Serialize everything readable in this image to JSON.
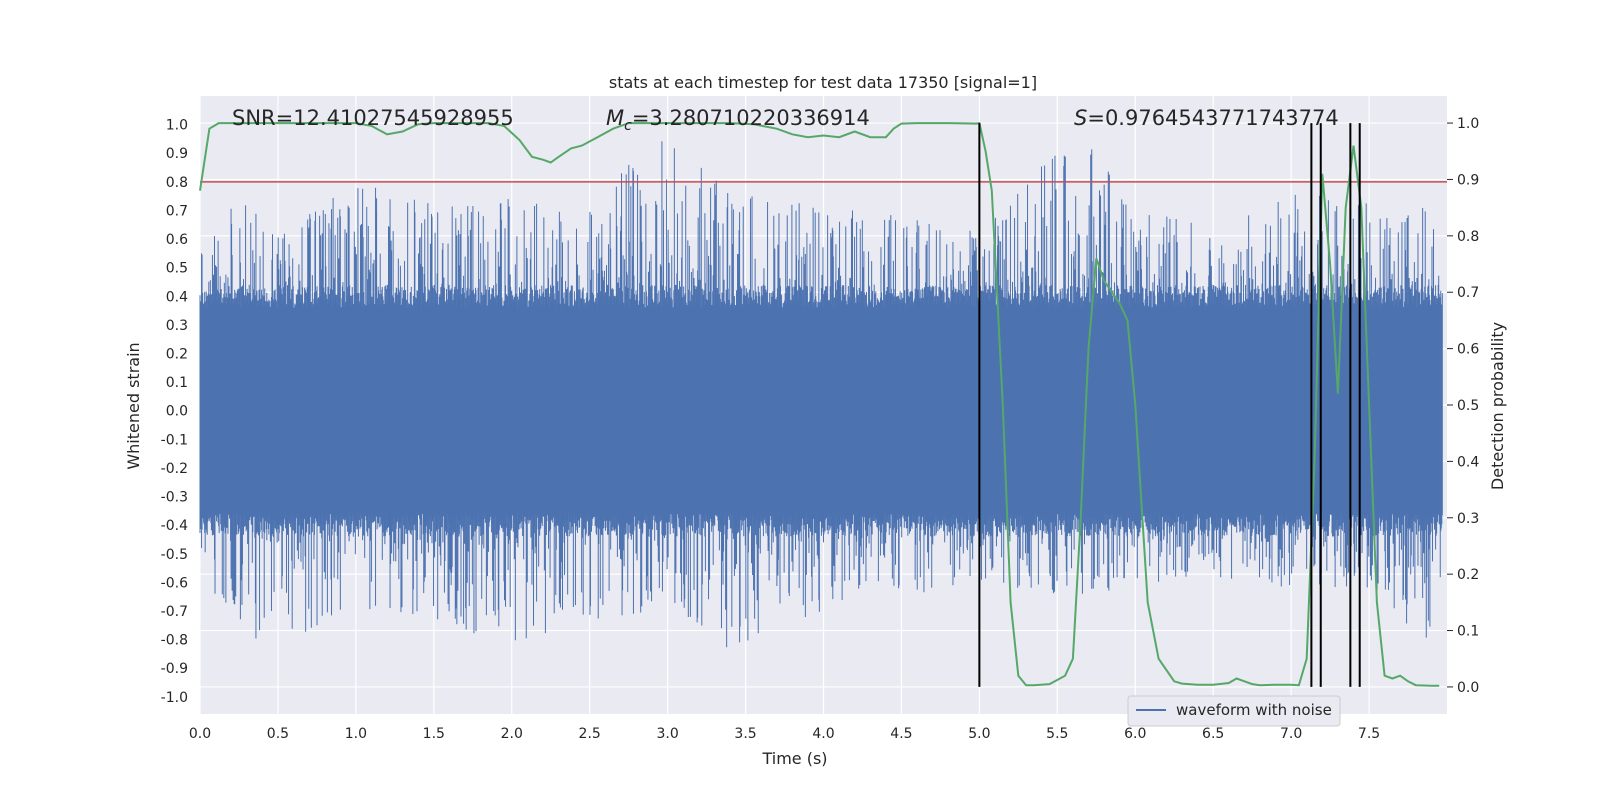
{
  "chart_data": {
    "type": "line",
    "title": "stats at each timestep for test data 17350 [signal=1]",
    "xlabel": "Time (s)",
    "ylabel": "Whitened strain",
    "y2label": "Detection probability",
    "xlim": [
      0,
      8.0
    ],
    "ylim": [
      -1.06,
      1.1
    ],
    "y2lim": [
      -0.048,
      1.048
    ],
    "x_ticks": [
      0,
      0.5,
      1,
      1.5,
      2,
      2.5,
      3,
      3.5,
      4,
      4.5,
      5,
      5.5,
      6,
      6.5,
      7,
      7.5
    ],
    "x_tick_labels": [
      "0.0",
      "0.5",
      "1.0",
      "1.5",
      "2.0",
      "2.5",
      "3.0",
      "3.5",
      "4.0",
      "4.5",
      "5.0",
      "5.5",
      "6.0",
      "6.5",
      "7.0",
      "7.5"
    ],
    "y_ticks": [
      1.0,
      0.9,
      0.8,
      0.7,
      0.6,
      0.5,
      0.4,
      0.3,
      0.2,
      0.1,
      0.0,
      -0.1,
      -0.2,
      -0.3,
      -0.4,
      -0.5,
      -0.6,
      -0.7,
      -0.8,
      -0.9,
      -1.0
    ],
    "y_tick_labels": [
      "1.0",
      "0.9",
      "0.8",
      "0.7",
      "0.6",
      "0.5",
      "0.4",
      "0.3",
      "0.2",
      "0.1",
      "0.0",
      "-0.1",
      "-0.2",
      "-0.3",
      "-0.4",
      "-0.5",
      "-0.6",
      "-0.7",
      "-0.8",
      "-0.9",
      "-1.0"
    ],
    "y2_ticks": [
      1.0,
      0.9,
      0.8,
      0.7,
      0.6,
      0.5,
      0.4,
      0.3,
      0.2,
      0.1,
      0.0
    ],
    "y2_tick_labels": [
      "1.0",
      "0.9",
      "0.8",
      "0.7",
      "0.6",
      "0.5",
      "0.4",
      "0.3",
      "0.2",
      "0.1",
      "0.0"
    ],
    "grid": true,
    "legend": {
      "entries": [
        "waveform with noise"
      ],
      "placement": "lower-right"
    },
    "annotations": {
      "snr": "SNR=12.41027545928955",
      "mc_symbol": "M",
      "mc_sub": "c",
      "mc_value": "=3.280710220336914",
      "s_symbol": "S",
      "s_value": "=0.9764543771743774"
    },
    "series": [
      {
        "name": "waveform with noise",
        "axis": "left",
        "color": "#4c72b0",
        "envelope": [
          [
            0.0,
            0.55,
            -0.55
          ],
          [
            0.25,
            0.75,
            -0.8
          ],
          [
            0.5,
            0.62,
            -0.82
          ],
          [
            1.0,
            0.8,
            -0.7
          ],
          [
            1.5,
            0.72,
            -0.75
          ],
          [
            2.0,
            0.75,
            -0.85
          ],
          [
            2.5,
            0.72,
            -0.73
          ],
          [
            3.0,
            1.0,
            -0.7
          ],
          [
            3.4,
            0.78,
            -0.84
          ],
          [
            4.0,
            0.72,
            -0.7
          ],
          [
            4.5,
            0.7,
            -0.66
          ],
          [
            5.0,
            0.62,
            -0.6
          ],
          [
            5.6,
            1.0,
            -0.65
          ],
          [
            6.0,
            0.72,
            -0.62
          ],
          [
            6.5,
            0.65,
            -0.6
          ],
          [
            7.0,
            0.78,
            -0.62
          ],
          [
            7.5,
            0.75,
            -0.65
          ],
          [
            7.95,
            0.7,
            -0.83
          ]
        ],
        "core_amplitude": 0.36
      },
      {
        "name": "detection probability",
        "axis": "right",
        "color": "#55a868",
        "x": [
          0.0,
          0.06,
          0.12,
          0.3,
          0.5,
          0.8,
          1.0,
          1.1,
          1.2,
          1.3,
          1.4,
          1.5,
          1.7,
          1.85,
          1.95,
          2.05,
          2.13,
          2.2,
          2.25,
          2.3,
          2.38,
          2.45,
          2.55,
          2.65,
          2.75,
          2.85,
          3.0,
          3.2,
          3.4,
          3.55,
          3.7,
          3.8,
          3.9,
          4.0,
          4.1,
          4.2,
          4.3,
          4.4,
          4.45,
          4.5,
          4.6,
          4.8,
          4.98,
          5.0,
          5.04,
          5.08,
          5.15,
          5.2,
          5.25,
          5.3,
          5.35,
          5.45,
          5.55,
          5.6,
          5.65,
          5.7,
          5.75,
          5.8,
          5.9,
          5.95,
          6.0,
          6.08,
          6.15,
          6.2,
          6.25,
          6.3,
          6.4,
          6.5,
          6.6,
          6.65,
          6.7,
          6.75,
          6.8,
          6.9,
          7.0,
          7.05,
          7.1,
          7.15,
          7.2,
          7.25,
          7.3,
          7.35,
          7.4,
          7.45,
          7.5,
          7.55,
          7.6,
          7.65,
          7.7,
          7.75,
          7.8,
          7.9,
          7.95
        ],
        "y": [
          0.88,
          0.99,
          1.0,
          1.0,
          1.0,
          1.0,
          1.0,
          0.995,
          0.98,
          0.985,
          0.998,
          1.0,
          1.0,
          1.0,
          0.995,
          0.97,
          0.94,
          0.935,
          0.93,
          0.94,
          0.955,
          0.96,
          0.975,
          0.99,
          1.0,
          1.0,
          1.0,
          1.0,
          1.0,
          0.998,
          0.99,
          0.98,
          0.975,
          0.978,
          0.975,
          0.985,
          0.975,
          0.975,
          0.99,
          0.999,
          1.0,
          1.0,
          0.999,
          1.0,
          0.95,
          0.88,
          0.5,
          0.15,
          0.02,
          0.003,
          0.003,
          0.005,
          0.02,
          0.05,
          0.3,
          0.6,
          0.76,
          0.72,
          0.68,
          0.65,
          0.5,
          0.15,
          0.05,
          0.03,
          0.01,
          0.006,
          0.004,
          0.004,
          0.007,
          0.015,
          0.01,
          0.005,
          0.003,
          0.004,
          0.004,
          0.003,
          0.05,
          0.4,
          0.91,
          0.75,
          0.52,
          0.85,
          0.96,
          0.85,
          0.5,
          0.15,
          0.02,
          0.015,
          0.02,
          0.01,
          0.003,
          0.002,
          0.002
        ]
      },
      {
        "name": "threshold",
        "axis": "left",
        "color": "#c44e52",
        "y": 0.8
      },
      {
        "name": "event markers",
        "axis": "right",
        "color": "#000000",
        "x": [
          5.0,
          7.13,
          7.19,
          7.38,
          7.44
        ],
        "y_range": [
          0.0,
          1.0
        ]
      }
    ]
  }
}
